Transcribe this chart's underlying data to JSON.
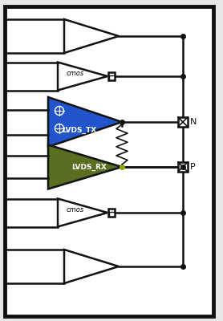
{
  "fig_width": 2.78,
  "fig_height": 4.0,
  "dpi": 100,
  "bg_color": "#e8e8e8",
  "border_color": "#111111",
  "line_color": "#111111",
  "inner_bg": "#ffffff",
  "lvds_tx_color": "#2255cc",
  "lvds_rx_color": "#5a6e22",
  "N_label": "N",
  "P_label": "P",
  "LVDS_TX_label": "LVDS_TX",
  "LVDS_RX_label": "LVDS_RX",
  "cmos_label": "cmos"
}
